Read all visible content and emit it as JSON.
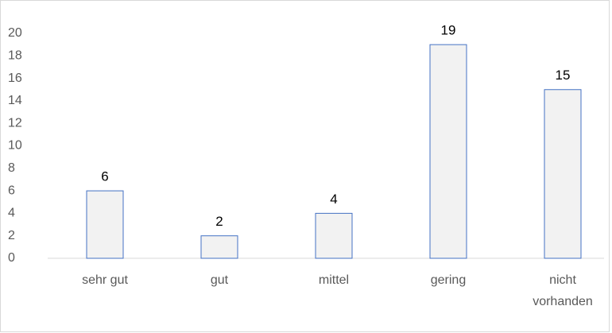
{
  "chart_data": {
    "type": "bar",
    "categories": [
      "sehr gut",
      "gut",
      "mittel",
      "gering",
      "nicht vorhanden"
    ],
    "values": [
      6,
      2,
      4,
      19,
      15
    ],
    "color": "#f2f2f2",
    "edge_color": "#4472c4",
    "ylim": [
      0,
      20
    ],
    "yticks": [
      0,
      2,
      4,
      6,
      8,
      10,
      12,
      14,
      16,
      18,
      20
    ],
    "grid": false
  }
}
